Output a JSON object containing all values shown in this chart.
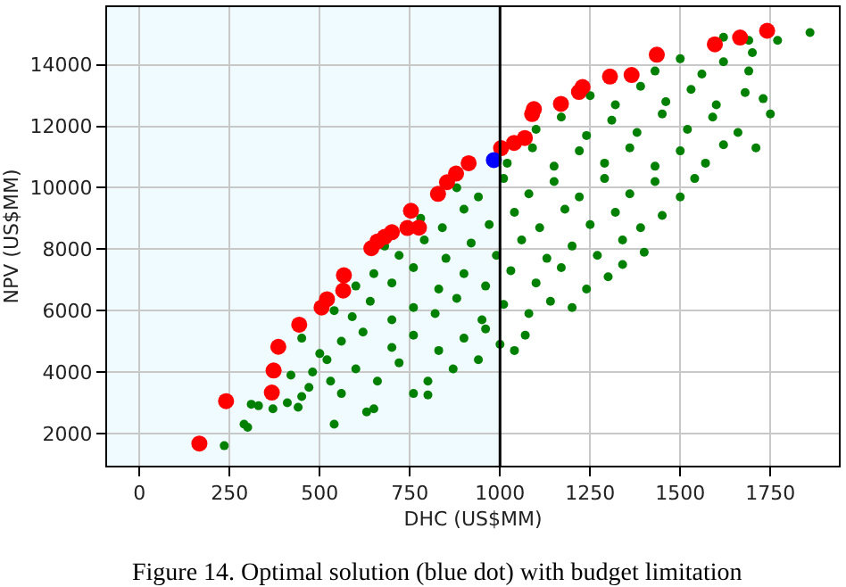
{
  "chart_data": {
    "type": "scatter",
    "xlabel": "DHC (US$MM)",
    "ylabel": "NPV (US$MM)",
    "annotations": [
      "Figure 14. Optimal solution (blue dot) with budget limitation"
    ],
    "xlim": [
      -90,
      1940
    ],
    "xticks": [
      0,
      250,
      500,
      750,
      1000,
      1250,
      1500,
      1750
    ],
    "ylim": [
      950,
      15880
    ],
    "yticks": [
      2000,
      4000,
      6000,
      8000,
      10000,
      12000,
      14000
    ],
    "grid": true,
    "marker": "circle",
    "bands": [
      {
        "axis": "x",
        "from": -90,
        "to": 1000,
        "color": "#f0fbff"
      }
    ],
    "ref_lines": [
      {
        "axis": "x",
        "value": 1000,
        "color": "#000000"
      }
    ],
    "series": [
      {
        "color": "#008000",
        "x": [
          235,
          290,
          300,
          330,
          310,
          370,
          410,
          440,
          450,
          540,
          630,
          650,
          470,
          560,
          760,
          800,
          420,
          480,
          530,
          600,
          660,
          720,
          800,
          870,
          940,
          520,
          450,
          500,
          560,
          620,
          700,
          760,
          830,
          900,
          960,
          1040,
          1070,
          1000,
          540,
          590,
          640,
          700,
          760,
          820,
          880,
          950,
          1010,
          1080,
          1140,
          1200,
          600,
          650,
          700,
          760,
          830,
          900,
          960,
          1030,
          1100,
          1170,
          1240,
          1300,
          1340,
          680,
          720,
          790,
          850,
          920,
          990,
          1060,
          1130,
          1200,
          1270,
          1340,
          1400,
          780,
          840,
          900,
          970,
          1040,
          1110,
          1180,
          1250,
          1320,
          1390,
          1450,
          880,
          940,
          1010,
          1080,
          1150,
          1220,
          1290,
          1360,
          1430,
          1500,
          1540,
          1020,
          1090,
          1150,
          1220,
          1290,
          1360,
          1430,
          1500,
          1570,
          1620,
          1710,
          1100,
          1170,
          1240,
          1310,
          1380,
          1450,
          1520,
          1590,
          1660,
          1750,
          1250,
          1320,
          1390,
          1460,
          1530,
          1600,
          1680,
          1730,
          1430,
          1500,
          1560,
          1620,
          1690,
          1700,
          1620,
          1690,
          1770,
          1860
        ],
        "values": [
          1600,
          2300,
          2200,
          2900,
          2950,
          2800,
          3000,
          2850,
          3200,
          2300,
          2700,
          2800,
          3500,
          3300,
          3300,
          3250,
          3900,
          4000,
          3700,
          4100,
          3700,
          4300,
          3700,
          4100,
          4400,
          4400,
          5100,
          4600,
          5000,
          5300,
          4800,
          5200,
          4700,
          5100,
          5400,
          4700,
          5200,
          4900,
          6000,
          5800,
          6300,
          5700,
          6100,
          5900,
          6400,
          5700,
          6200,
          5900,
          6300,
          6100,
          6800,
          7200,
          6900,
          7400,
          6700,
          7200,
          6800,
          7300,
          6900,
          7400,
          6700,
          7100,
          7500,
          8100,
          7800,
          8300,
          7700,
          8200,
          7800,
          8300,
          7700,
          8100,
          7800,
          8300,
          7900,
          9000,
          8700,
          9300,
          8800,
          9200,
          8700,
          9300,
          8800,
          9200,
          8700,
          9100,
          10000,
          9700,
          10300,
          9800,
          10200,
          9700,
          10300,
          9800,
          10200,
          9700,
          10300,
          10800,
          11300,
          10700,
          11200,
          10800,
          11300,
          10700,
          11200,
          10800,
          11400,
          11300,
          11900,
          12300,
          11700,
          12200,
          11800,
          12400,
          11900,
          12300,
          11800,
          12400,
          13000,
          12700,
          13300,
          12800,
          13200,
          12700,
          13100,
          12900,
          13800,
          14200,
          13700,
          14100,
          13800,
          14400,
          14900,
          14800,
          14800,
          15050
        ]
      },
      {
        "color": "#ff0000",
        "x": [
          166,
          240,
          367,
          372,
          385,
          443,
          505,
          520,
          565,
          567,
          643,
          660,
          680,
          700,
          743,
          775,
          753,
          828,
          853,
          878,
          913,
          1003,
          1039,
          1069,
          1089,
          1094,
          1169,
          1219,
          1229,
          1305,
          1365,
          1435,
          1596,
          1666,
          1741
        ],
        "values": [
          1670,
          3050,
          3330,
          4050,
          4820,
          5540,
          6100,
          6370,
          6650,
          7150,
          8030,
          8250,
          8400,
          8550,
          8690,
          8700,
          9250,
          9800,
          10180,
          10460,
          10800,
          11290,
          11460,
          11620,
          12400,
          12560,
          12730,
          13120,
          13280,
          13620,
          13670,
          14330,
          14670,
          14890,
          15110
        ]
      },
      {
        "color": "#0000ff",
        "x": [
          983
        ],
        "values": [
          10900
        ]
      }
    ]
  }
}
